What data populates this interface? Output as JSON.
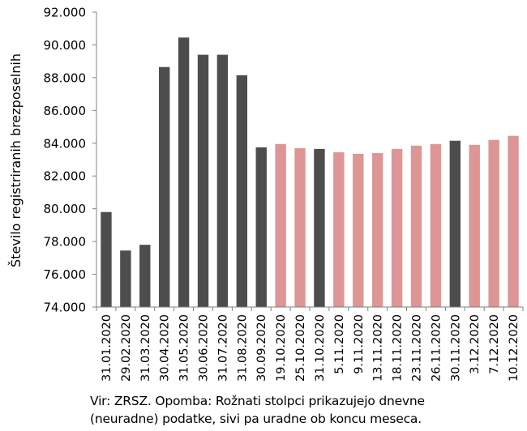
{
  "chart_data": {
    "type": "bar",
    "title": "",
    "xlabel": "",
    "ylabel": "Število registriranih brezposelnih",
    "ylim": [
      74000,
      92000
    ],
    "yticks": [
      74000,
      76000,
      78000,
      80000,
      82000,
      84000,
      86000,
      88000,
      90000,
      92000
    ],
    "ytick_labels": [
      "74.000",
      "76.000",
      "78.000",
      "80.000",
      "82.000",
      "84.000",
      "86.000",
      "88.000",
      "90.000",
      "92.000"
    ],
    "grid": false,
    "colors": {
      "monthly": "#4d4d4d",
      "daily": "#dd9595"
    },
    "categories": [
      "31.01.2020",
      "29.02.2020",
      "31.03.2020",
      "30.04.2020",
      "31.05.2020",
      "30.06.2020",
      "31.07.2020",
      "31.08.2020",
      "30.09.2020",
      "19.10.2020",
      "25.10.2020",
      "31.10.2020",
      "5.11.2020",
      "9.11.2020",
      "13.11.2020",
      "18.11.2020",
      "23.11.2020",
      "26.11.2020",
      "30.11.2020",
      "3.12.2020",
      "7.12.2020",
      "10.12.2020"
    ],
    "values": [
      79800,
      77450,
      77800,
      88650,
      90450,
      89400,
      89400,
      88150,
      83750,
      83950,
      83700,
      83650,
      83450,
      83350,
      83400,
      83650,
      83850,
      83950,
      84150,
      83900,
      84200,
      84450
    ],
    "bar_kind": [
      "monthly",
      "monthly",
      "monthly",
      "monthly",
      "monthly",
      "monthly",
      "monthly",
      "monthly",
      "monthly",
      "daily",
      "daily",
      "monthly",
      "daily",
      "daily",
      "daily",
      "daily",
      "daily",
      "daily",
      "monthly",
      "daily",
      "daily",
      "daily"
    ]
  },
  "footnote": {
    "line1": "Vir: ZRSZ. Opomba: Rožnati stolpci prikazujejo dnevne",
    "line2": "(neuradne) podatke, sivi pa uradne ob koncu meseca."
  }
}
